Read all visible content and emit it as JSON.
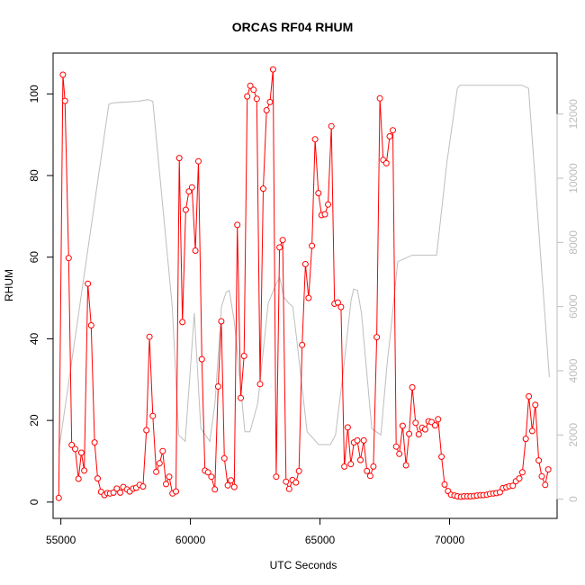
{
  "chart_data": {
    "type": "line",
    "title": "ORCAS RF04 RHUM",
    "xlabel": "UTC Seconds",
    "ylabel": "RHUM",
    "xlim": [
      54700,
      74150
    ],
    "ylim": [
      -4,
      110
    ],
    "y2lim": [
      -600,
      13900
    ],
    "x_ticks": [
      55000,
      60000,
      65000,
      70000
    ],
    "y_ticks": [
      0,
      20,
      40,
      60,
      80,
      100
    ],
    "y2_ticks": [
      0,
      2000,
      4000,
      6000,
      8000,
      10000,
      12000
    ],
    "grid": false,
    "legend": "none",
    "colors": {
      "rhum": "#ff0000",
      "altitude": "#bebebe",
      "axis": "#000000",
      "right_axis": "#bdbdbd"
    },
    "series": [
      {
        "role": "primary",
        "line": true,
        "markers": "open-circle",
        "x": [
          54920,
          55080,
          55160,
          55300,
          55420,
          55550,
          55680,
          55790,
          55900,
          56040,
          56170,
          56300,
          56420,
          56550,
          56680,
          56790,
          56900,
          57030,
          57160,
          57290,
          57410,
          57550,
          57660,
          57790,
          57910,
          58040,
          58170,
          58300,
          58420,
          58550,
          58680,
          58810,
          58930,
          59060,
          59180,
          59310,
          59440,
          59570,
          59690,
          59820,
          59940,
          60060,
          60190,
          60310,
          60440,
          60560,
          60680,
          60810,
          60940,
          61070,
          61190,
          61310,
          61440,
          61560,
          61690,
          61810,
          61940,
          62070,
          62190,
          62310,
          62440,
          62560,
          62690,
          62810,
          62940,
          63070,
          63190,
          63310,
          63440,
          63560,
          63690,
          63810,
          63940,
          64070,
          64190,
          64310,
          64440,
          64560,
          64690,
          64810,
          64940,
          65060,
          65190,
          65310,
          65440,
          65560,
          65690,
          65810,
          65940,
          66070,
          66190,
          66310,
          66440,
          66560,
          66690,
          66810,
          66940,
          67060,
          67190,
          67310,
          67440,
          67560,
          67690,
          67810,
          67940,
          68060,
          68190,
          68320,
          68440,
          68560,
          68690,
          68810,
          68940,
          69060,
          69190,
          69310,
          69440,
          69560,
          69690,
          69810,
          69940,
          70060,
          70190,
          70310,
          70440,
          70560,
          70690,
          70810,
          70940,
          71060,
          71190,
          71310,
          71440,
          71560,
          71690,
          71810,
          71940,
          72060,
          72190,
          72310,
          72440,
          72560,
          72690,
          72810,
          72940,
          73060,
          73190,
          73310,
          73440,
          73560,
          73690,
          73810
        ],
        "y": [
          1,
          104.7,
          98.3,
          59.8,
          14,
          13,
          5.7,
          12.1,
          7.7,
          53.5,
          43.3,
          14.6,
          5.8,
          2.5,
          1.7,
          2.2,
          2.1,
          2.3,
          3.3,
          2.3,
          3.7,
          3.1,
          2.6,
          3.3,
          3.5,
          4.2,
          3.8,
          17.6,
          40.5,
          21.1,
          7.4,
          9.5,
          12.5,
          4.4,
          6.2,
          2.1,
          2.6,
          84.3,
          44.1,
          71.6,
          76.1,
          77.1,
          61.6,
          83.5,
          35,
          7.7,
          7.3,
          6.2,
          3.1,
          28.3,
          44.3,
          10.7,
          4.1,
          5.3,
          3.7,
          67.9,
          25.5,
          35.8,
          99.4,
          102,
          101,
          98.8,
          28.9,
          76.8,
          96,
          98,
          106,
          6.2,
          62.4,
          64.2,
          5,
          3.2,
          5.4,
          4.8,
          7.6,
          38.5,
          58.3,
          50,
          62.8,
          88.9,
          75.7,
          70.3,
          70.5,
          72.9,
          92.1,
          48.6,
          48.9,
          47.8,
          8.7,
          18.3,
          9.3,
          14.6,
          15.1,
          10.3,
          15.1,
          7.6,
          6.4,
          8.7,
          40.4,
          98.9,
          83.8,
          83,
          89.6,
          91.1,
          13.6,
          11.8,
          18.7,
          9,
          16.7,
          28.1,
          19.4,
          16.6,
          18.2,
          17.8,
          19.8,
          19.6,
          18.8,
          20.3,
          11.1,
          4.3,
          2.7,
          1.8,
          1.6,
          1.4,
          1.3,
          1.4,
          1.4,
          1.4,
          1.5,
          1.6,
          1.7,
          1.7,
          1.8,
          2,
          2.1,
          2.2,
          2.4,
          3.4,
          3.6,
          3.9,
          4,
          5.1,
          5.8,
          7.3,
          15.5,
          25.9,
          17.4,
          23.8,
          10.2,
          6.3,
          4.2,
          8
        ]
      },
      {
        "role": "secondary-axis",
        "line": true,
        "markers": "none",
        "x": [
          54920,
          56850,
          57000,
          58000,
          58350,
          58550,
          59300,
          59550,
          59800,
          60150,
          60400,
          60750,
          60950,
          61200,
          61380,
          61500,
          61700,
          62100,
          62300,
          62600,
          63000,
          63300,
          63450,
          63600,
          63800,
          63950,
          64100,
          64500,
          64950,
          65400,
          65600,
          65900,
          66200,
          66300,
          66450,
          66600,
          67000,
          67350,
          67600,
          67700,
          68000,
          68550,
          69500,
          69900,
          70300,
          70400,
          70600,
          72800,
          73050,
          73850
        ],
        "y": [
          1500,
          12300,
          12350,
          12400,
          12450,
          12400,
          6000,
          2000,
          1800,
          5800,
          2200,
          1800,
          3000,
          6000,
          6450,
          6500,
          5500,
          2100,
          2100,
          3000,
          6100,
          6700,
          6900,
          6300,
          6100,
          6000,
          5000,
          2100,
          1700,
          1700,
          2000,
          4000,
          6200,
          6550,
          6500,
          5800,
          2200,
          2000,
          4300,
          5000,
          7400,
          7600,
          7600,
          10500,
          12800,
          12900,
          12900,
          12900,
          12800,
          3800
        ]
      }
    ]
  }
}
